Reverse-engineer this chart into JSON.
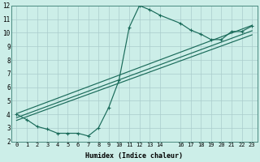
{
  "xlabel": "Humidex (Indice chaleur)",
  "background_color": "#cceee8",
  "grid_color": "#aacccc",
  "line_color": "#1a6b5a",
  "xlim": [
    -0.5,
    23.5
  ],
  "ylim": [
    2,
    12
  ],
  "xticks": [
    0,
    1,
    2,
    3,
    4,
    5,
    6,
    7,
    8,
    9,
    10,
    11,
    12,
    13,
    14,
    16,
    17,
    18,
    19,
    20,
    21,
    22,
    23
  ],
  "yticks": [
    2,
    3,
    4,
    5,
    6,
    7,
    8,
    9,
    10,
    11,
    12
  ],
  "curve_x": [
    0,
    1,
    2,
    3,
    4,
    5,
    6,
    7,
    8,
    9,
    10,
    11,
    12,
    13,
    14,
    16,
    17,
    18,
    19,
    20,
    21,
    22,
    23
  ],
  "curve_y": [
    4.0,
    3.6,
    3.1,
    2.9,
    2.6,
    2.6,
    2.6,
    2.4,
    3.0,
    4.5,
    6.5,
    10.4,
    12.0,
    11.7,
    11.3,
    10.7,
    10.2,
    9.9,
    9.5,
    9.5,
    10.1,
    10.1,
    10.5
  ],
  "line1_x": [
    0,
    23
  ],
  "line1_y": [
    4.05,
    10.55
  ],
  "line2_x": [
    0,
    23
  ],
  "line2_y": [
    3.75,
    10.15
  ],
  "line3_x": [
    0,
    23
  ],
  "line3_y": [
    3.55,
    9.85
  ]
}
